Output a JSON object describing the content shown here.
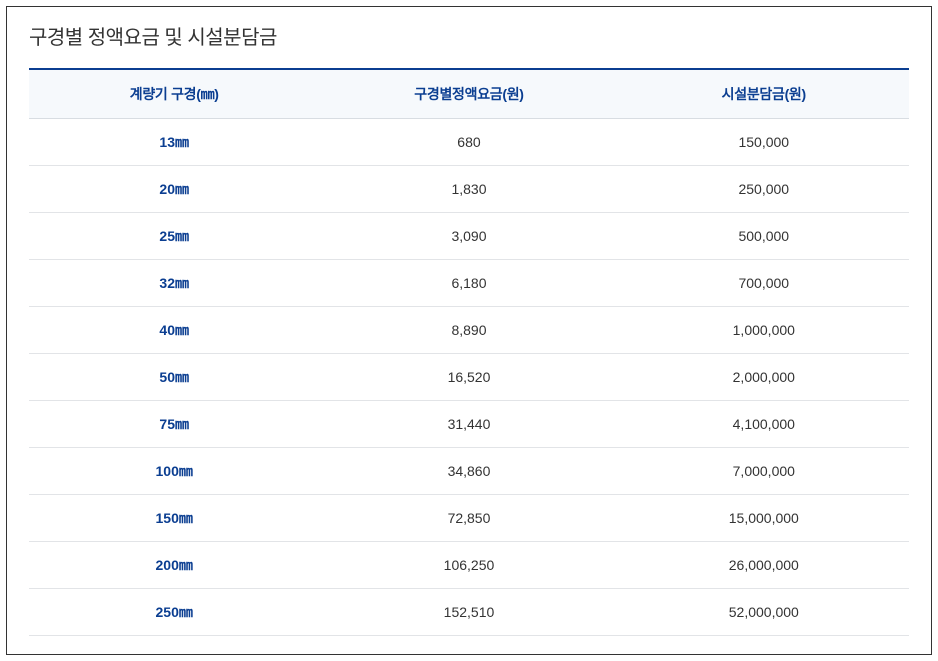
{
  "title": "구경별 정액요금 및 시설분담금",
  "table": {
    "columns": [
      "계량기 구경(㎜)",
      "구경별정액요금(원)",
      "시설분담금(원)"
    ],
    "rows": [
      {
        "size": "13㎜",
        "fee": "680",
        "facility": "150,000"
      },
      {
        "size": "20㎜",
        "fee": "1,830",
        "facility": "250,000"
      },
      {
        "size": "25㎜",
        "fee": "3,090",
        "facility": "500,000"
      },
      {
        "size": "32㎜",
        "fee": "6,180",
        "facility": "700,000"
      },
      {
        "size": "40㎜",
        "fee": "8,890",
        "facility": "1,000,000"
      },
      {
        "size": "50㎜",
        "fee": "16,520",
        "facility": "2,000,000"
      },
      {
        "size": "75㎜",
        "fee": "31,440",
        "facility": "4,100,000"
      },
      {
        "size": "100㎜",
        "fee": "34,860",
        "facility": "7,000,000"
      },
      {
        "size": "150㎜",
        "fee": "72,850",
        "facility": "15,000,000"
      },
      {
        "size": "200㎜",
        "fee": "106,250",
        "facility": "26,000,000"
      },
      {
        "size": "250㎜",
        "fee": "152,510",
        "facility": "52,000,000"
      }
    ]
  },
  "colors": {
    "header_text": "#0b3e91",
    "header_bg": "#f6f9fc",
    "border_top": "#0b3e91",
    "row_border": "#e2e4e7",
    "title_color": "#333333"
  }
}
